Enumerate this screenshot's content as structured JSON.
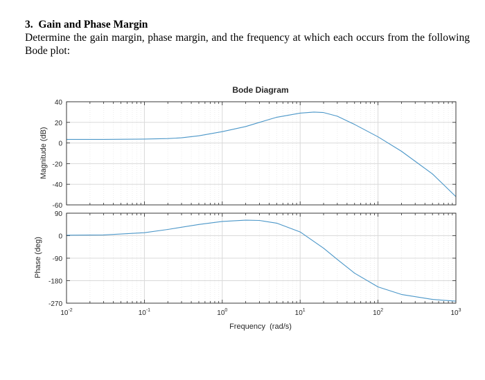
{
  "question": {
    "number": "3.",
    "title": "Gain and Phase Margin",
    "body": "Determine the gain margin, phase margin, and the frequency at which each occurs from the following Bode plot:"
  },
  "chart_data": {
    "type": "line",
    "title": "Bode Diagram",
    "xlabel": "Frequency  (rad/s)",
    "xscale": "log",
    "xlim": [
      0.01,
      1000
    ],
    "x_ticks": [
      {
        "base": "10",
        "exp": "-2"
      },
      {
        "base": "10",
        "exp": "-1"
      },
      {
        "base": "10",
        "exp": "0"
      },
      {
        "base": "10",
        "exp": "1"
      },
      {
        "base": "10",
        "exp": "2"
      },
      {
        "base": "10",
        "exp": "3"
      }
    ],
    "grid": true,
    "line_color": "#4a96c8",
    "magnitude": {
      "ylabel": "Magnitude (dB)",
      "ylim": [
        -60,
        40
      ],
      "yticks": [
        40,
        20,
        0,
        -20,
        -40,
        -60
      ],
      "series": [
        {
          "x": [
            0.01,
            0.03,
            0.1,
            0.2,
            0.3,
            0.5,
            1,
            2,
            3,
            5,
            10,
            15,
            20,
            30,
            50,
            100,
            200,
            500,
            1000
          ],
          "y": [
            3.5,
            3.5,
            3.8,
            4.3,
            5,
            7,
            11,
            16,
            20,
            25,
            29,
            30,
            29.5,
            26,
            18,
            6,
            -8,
            -30,
            -52
          ]
        }
      ]
    },
    "phase": {
      "ylabel": "Phase (deg)",
      "ylim": [
        -270,
        90
      ],
      "yticks": [
        90,
        0,
        -90,
        -180,
        -270
      ],
      "series": [
        {
          "x": [
            0.01,
            0.03,
            0.1,
            0.2,
            0.5,
            1,
            2,
            3,
            5,
            10,
            20,
            30,
            50,
            100,
            200,
            500,
            1000
          ],
          "y": [
            2,
            3,
            12,
            25,
            45,
            57,
            62,
            61,
            50,
            15,
            -50,
            -95,
            -150,
            -205,
            -235,
            -255,
            -262
          ]
        }
      ]
    }
  }
}
